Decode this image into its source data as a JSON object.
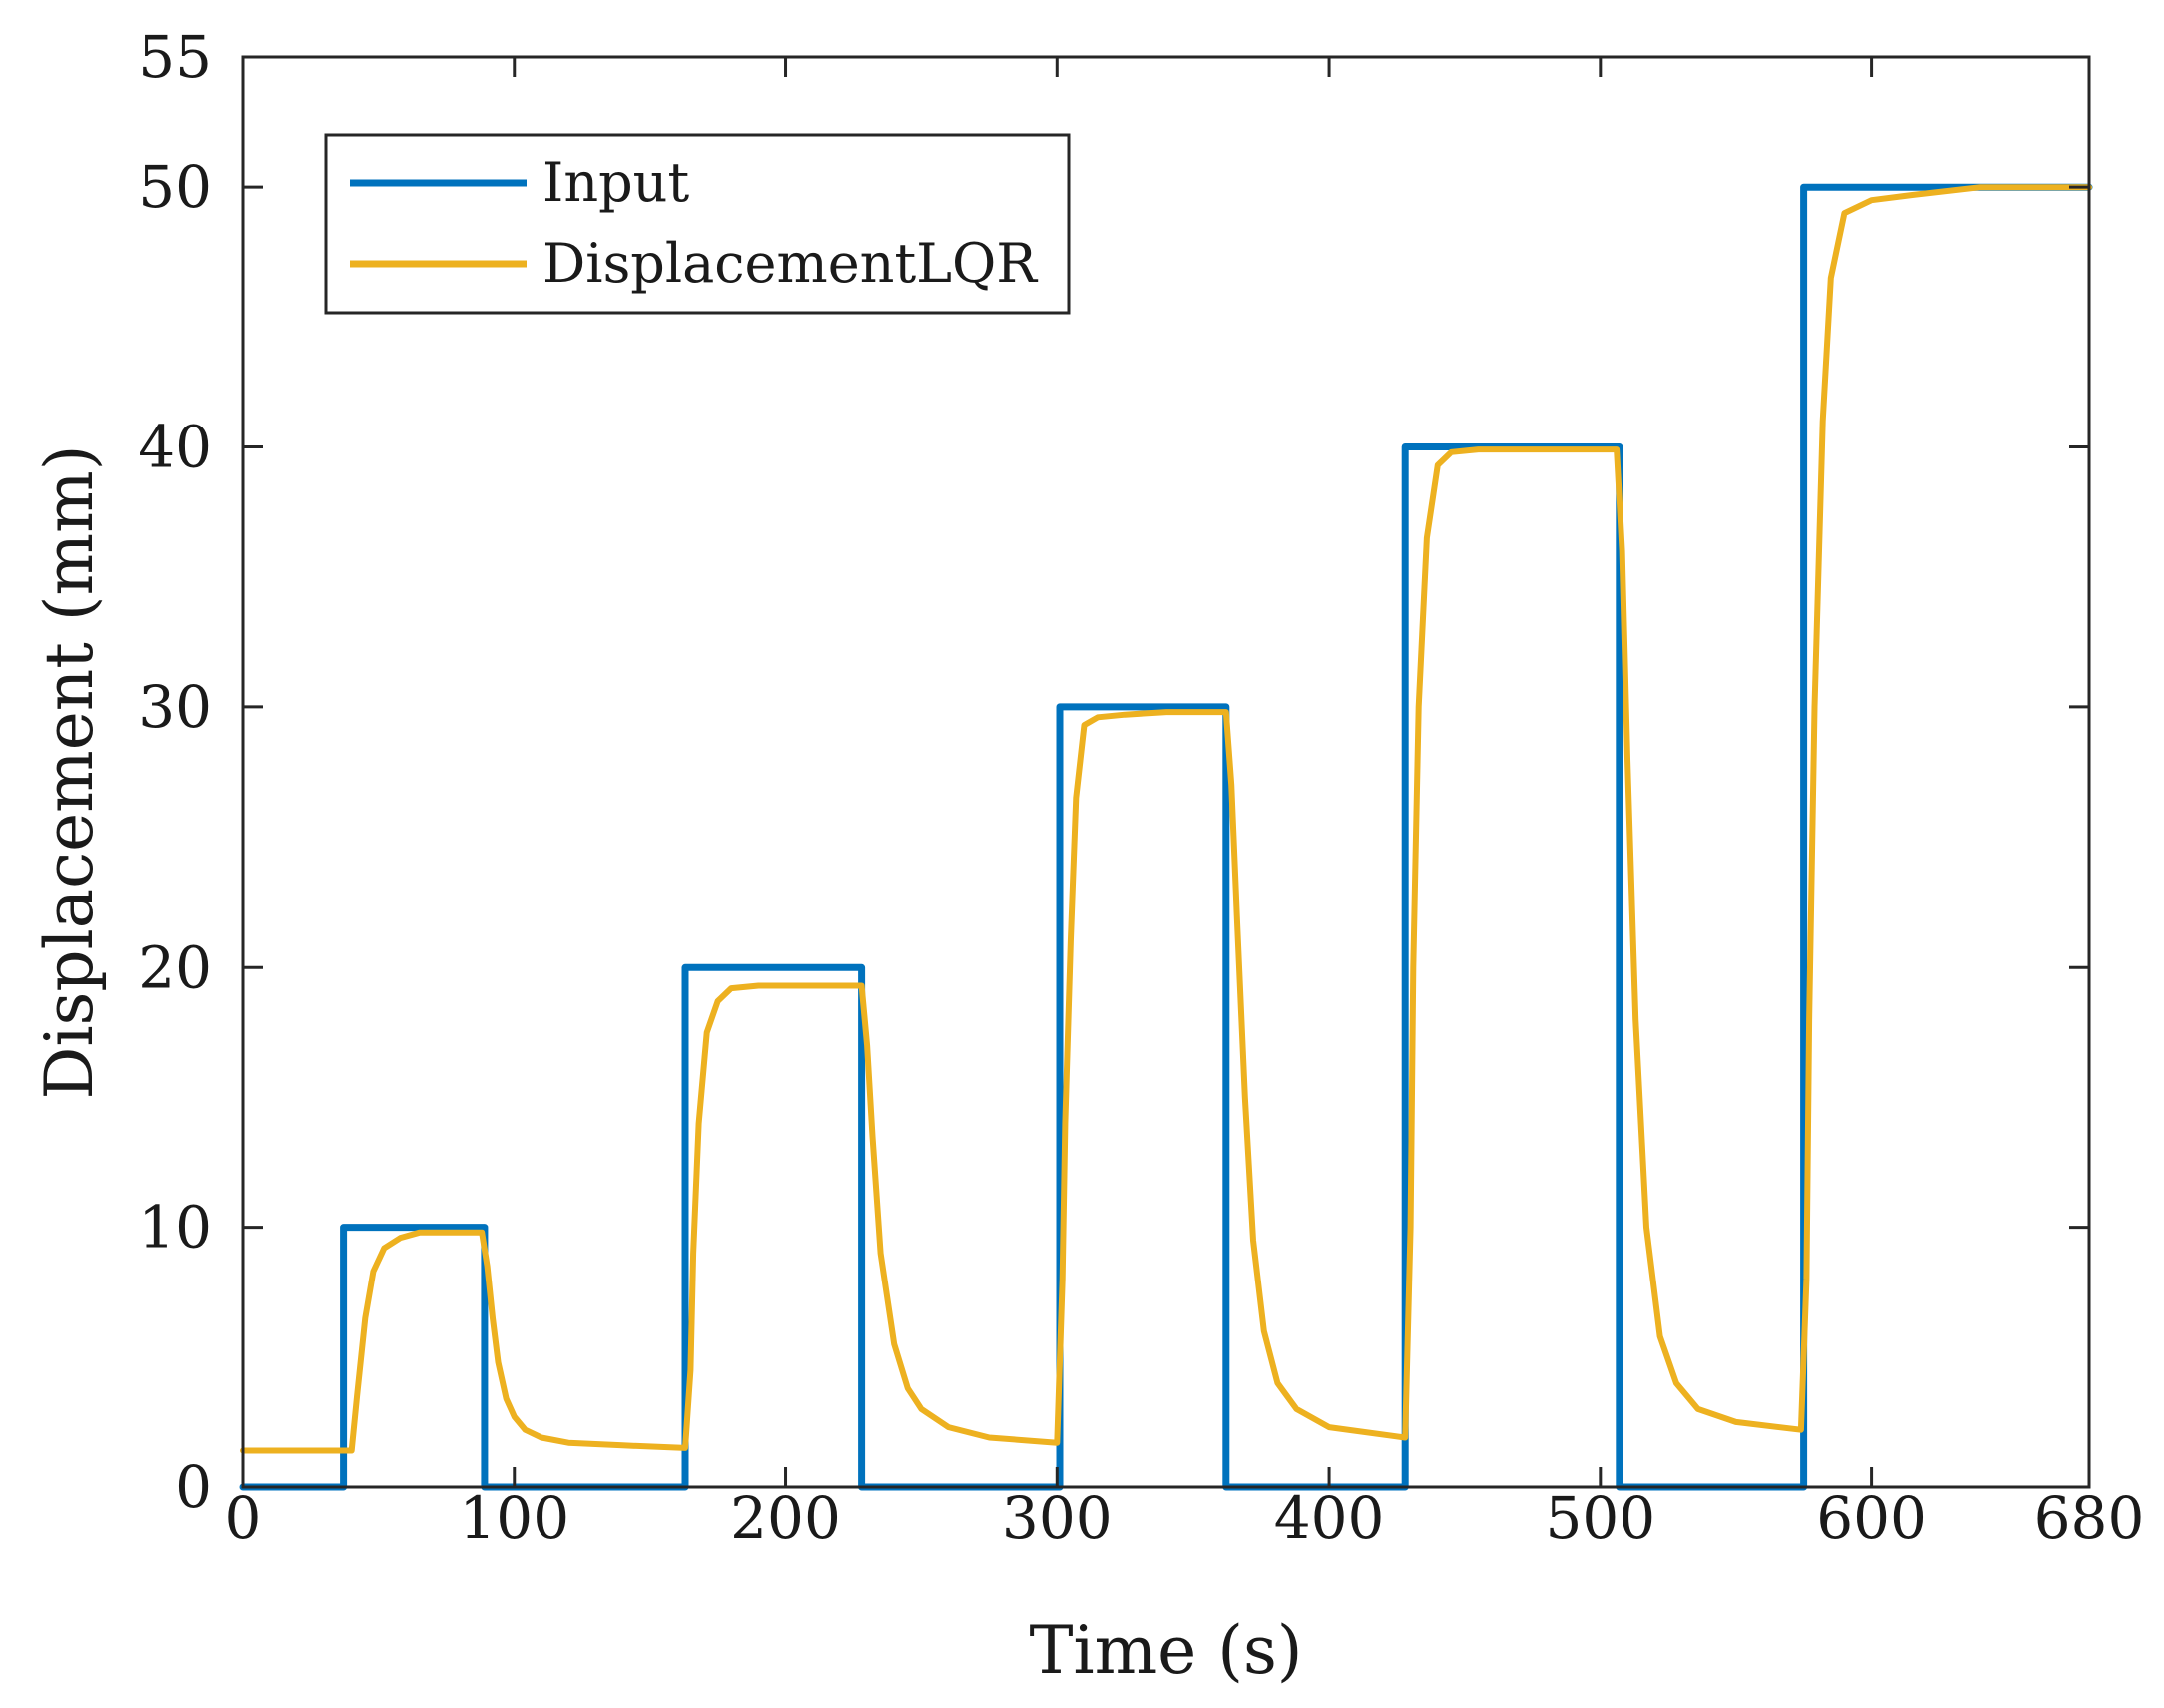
{
  "chart_data": {
    "type": "line",
    "title": "",
    "xlabel": "Time (s)",
    "ylabel": "Displacement (mm)",
    "xlim": [
      0,
      680
    ],
    "ylim": [
      0,
      55
    ],
    "xticks": [
      0,
      100,
      200,
      300,
      400,
      500,
      600,
      680
    ],
    "yticks": [
      0,
      10,
      20,
      30,
      40,
      50,
      55
    ],
    "xtick_labels": [
      "0",
      "100",
      "200",
      "300",
      "400",
      "500",
      "600",
      "680"
    ],
    "ytick_labels": [
      "0",
      "10",
      "20",
      "30",
      "40",
      "50",
      "55"
    ],
    "grid": false,
    "legend": {
      "location": "top-left",
      "entries": [
        "Input",
        "DisplacementLQR"
      ]
    },
    "series": [
      {
        "name": "Input",
        "color": "#0072BD",
        "x": [
          0,
          37,
          37,
          89,
          89,
          163,
          163,
          228,
          228,
          301,
          301,
          362,
          362,
          428,
          428,
          507,
          507,
          575,
          575,
          680
        ],
        "y": [
          0,
          0,
          10,
          10,
          0,
          0,
          20,
          20,
          0,
          0,
          30,
          30,
          0,
          0,
          40,
          40,
          0,
          0,
          50,
          50
        ]
      },
      {
        "name": "DisplacementLQR",
        "color": "#EDB120",
        "x": [
          0,
          40,
          42,
          45,
          48,
          52,
          58,
          65,
          88,
          90,
          92,
          94,
          97,
          100,
          104,
          110,
          120,
          140,
          163,
          165,
          166,
          168,
          171,
          175,
          180,
          190,
          200,
          228,
          230,
          232,
          235,
          240,
          245,
          250,
          260,
          275,
          300,
          302,
          303,
          305,
          307,
          310,
          315,
          325,
          340,
          362,
          364,
          366,
          369,
          372,
          376,
          381,
          388,
          400,
          428,
          430,
          431,
          433,
          436,
          440,
          445,
          455,
          480,
          506,
          508,
          510,
          513,
          517,
          522,
          528,
          536,
          550,
          574,
          576,
          577,
          579,
          582,
          585,
          590,
          600,
          615,
          640,
          680
        ],
        "y": [
          1.4,
          1.4,
          3.5,
          6.5,
          8.3,
          9.2,
          9.6,
          9.8,
          9.8,
          8.5,
          6.5,
          4.8,
          3.4,
          2.7,
          2.2,
          1.9,
          1.7,
          1.6,
          1.5,
          4.5,
          9,
          14,
          17.5,
          18.7,
          19.2,
          19.3,
          19.3,
          19.3,
          17,
          13.5,
          9,
          5.5,
          3.8,
          3,
          2.3,
          1.9,
          1.7,
          8,
          14,
          21,
          26.5,
          29.3,
          29.6,
          29.7,
          29.8,
          29.8,
          27,
          22,
          15,
          9.5,
          6,
          4,
          3,
          2.3,
          1.9,
          10,
          20,
          30,
          36.5,
          39.3,
          39.8,
          39.9,
          39.9,
          39.9,
          36,
          28,
          18,
          10,
          5.8,
          4,
          3,
          2.5,
          2.2,
          8,
          18,
          30,
          41,
          46.5,
          49,
          49.5,
          49.7,
          50,
          50
        ]
      }
    ]
  }
}
